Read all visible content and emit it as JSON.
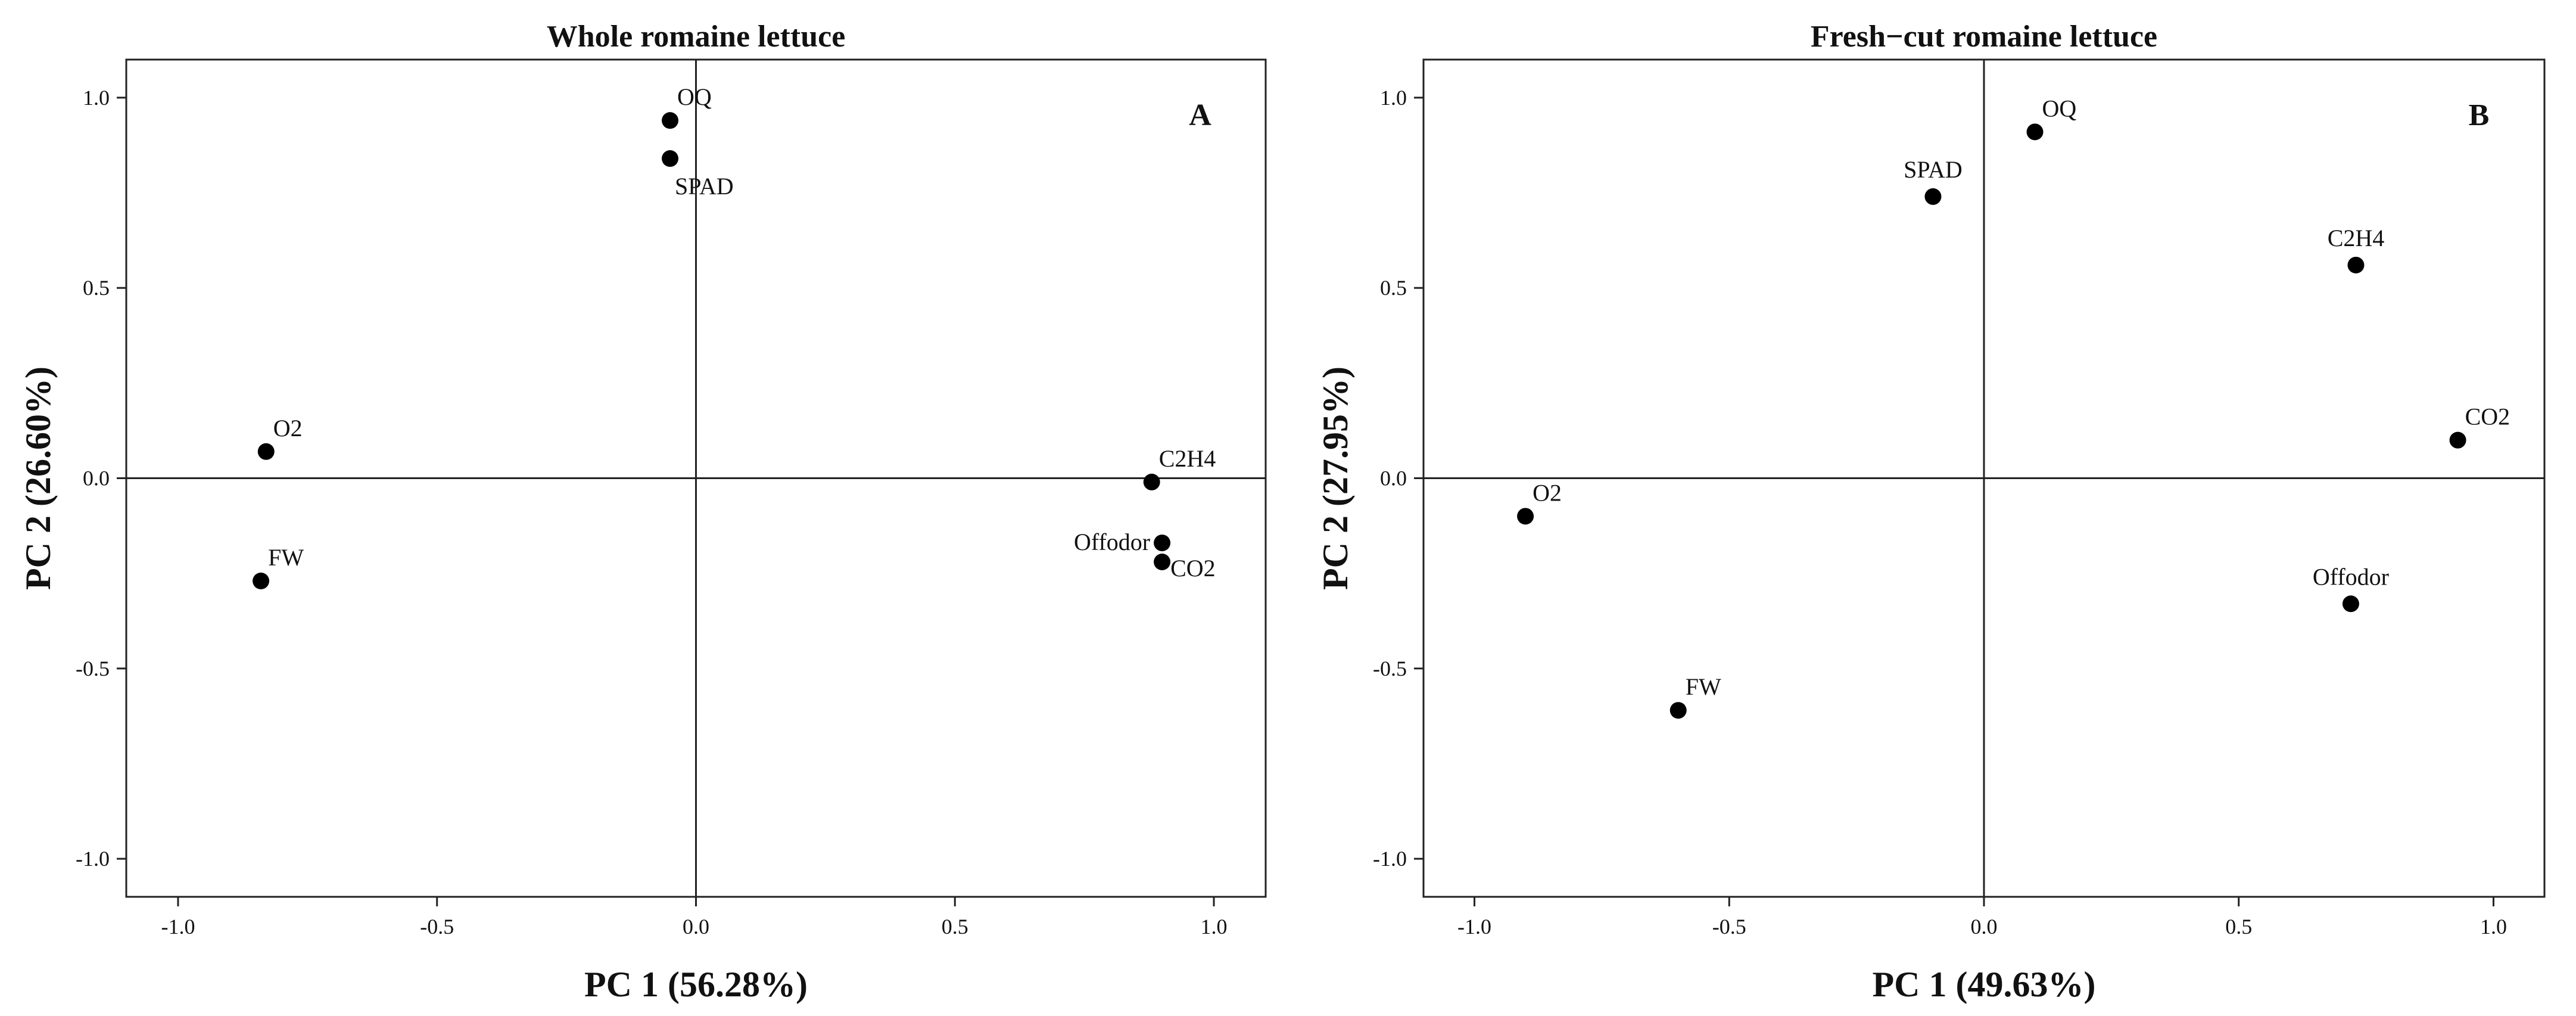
{
  "chart_data": [
    {
      "type": "scatter",
      "title": "Whole romaine lettuce",
      "panel_letter": "A",
      "xlabel": "PC 1 (56.28%)",
      "ylabel": "PC 2 (26.60%)",
      "xlim": [
        -1.1,
        1.1
      ],
      "ylim": [
        -1.1,
        1.1
      ],
      "x_ticks": [
        -1.0,
        -0.5,
        0.0,
        0.5,
        1.0
      ],
      "x_tick_labels": [
        "-1.0",
        "-0.5",
        "0.0",
        "0.5",
        "1.0"
      ],
      "y_ticks": [
        -1.0,
        -0.5,
        0.0,
        0.5,
        1.0
      ],
      "y_tick_labels": [
        "-1.0",
        "-0.5",
        "0.0",
        "0.5",
        "1.0"
      ],
      "grid": false,
      "reference_lines": {
        "x": 0,
        "y": 0
      },
      "points": [
        {
          "label": "OQ",
          "x": -0.05,
          "y": 0.94,
          "label_pos": "above-right"
        },
        {
          "label": "SPAD",
          "x": -0.05,
          "y": 0.84,
          "label_pos": "below-right"
        },
        {
          "label": "O2",
          "x": -0.83,
          "y": 0.07,
          "label_pos": "above-right"
        },
        {
          "label": "FW",
          "x": -0.84,
          "y": -0.27,
          "label_pos": "above-right"
        },
        {
          "label": "C2H4",
          "x": 0.88,
          "y": -0.01,
          "label_pos": "above-right"
        },
        {
          "label": "Offodor",
          "x": 0.9,
          "y": -0.17,
          "label_pos": "left"
        },
        {
          "label": "CO2",
          "x": 0.9,
          "y": -0.22,
          "label_pos": "right"
        }
      ],
      "colors": {
        "point": "#000000",
        "axes": "#222222"
      }
    },
    {
      "type": "scatter",
      "title": "Fresh−cut romaine lettuce",
      "panel_letter": "B",
      "xlabel": "PC 1 (49.63%)",
      "ylabel": "PC 2 (27.95%)",
      "xlim": [
        -1.1,
        1.1
      ],
      "ylim": [
        -1.1,
        1.1
      ],
      "x_ticks": [
        -1.0,
        -0.5,
        0.0,
        0.5,
        1.0
      ],
      "x_tick_labels": [
        "-1.0",
        "-0.5",
        "0.0",
        "0.5",
        "1.0"
      ],
      "y_ticks": [
        -1.0,
        -0.5,
        0.0,
        0.5,
        1.0
      ],
      "y_tick_labels": [
        "-1.0",
        "-0.5",
        "0.0",
        "0.5",
        "1.0"
      ],
      "grid": false,
      "reference_lines": {
        "x": 0,
        "y": 0
      },
      "points": [
        {
          "label": "OQ",
          "x": 0.1,
          "y": 0.91,
          "label_pos": "above-right"
        },
        {
          "label": "SPAD",
          "x": -0.1,
          "y": 0.74,
          "label_pos": "above"
        },
        {
          "label": "C2H4",
          "x": 0.73,
          "y": 0.56,
          "label_pos": "above"
        },
        {
          "label": "CO2",
          "x": 0.93,
          "y": 0.1,
          "label_pos": "above-right"
        },
        {
          "label": "O2",
          "x": -0.9,
          "y": -0.1,
          "label_pos": "above-right"
        },
        {
          "label": "Offodor",
          "x": 0.72,
          "y": -0.33,
          "label_pos": "above"
        },
        {
          "label": "FW",
          "x": -0.6,
          "y": -0.61,
          "label_pos": "above-right"
        }
      ],
      "colors": {
        "point": "#000000",
        "axes": "#222222"
      }
    }
  ]
}
